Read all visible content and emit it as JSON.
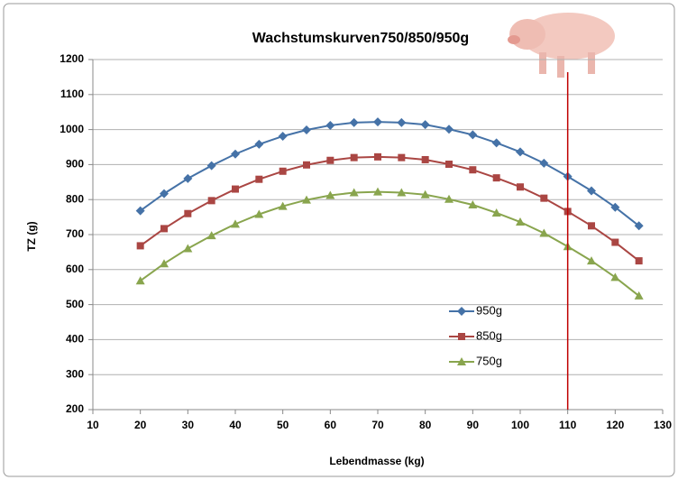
{
  "chart_data": {
    "type": "line",
    "title": "Wachstumskurven750/850/950g",
    "x_label": "Lebendmasse (kg)",
    "y_label": "TZ (g)",
    "x": [
      20,
      25,
      30,
      35,
      40,
      45,
      50,
      55,
      60,
      65,
      70,
      75,
      80,
      85,
      90,
      95,
      100,
      105,
      110,
      115,
      120,
      125
    ],
    "series": [
      {
        "name": "950g",
        "color": "#4572a7",
        "marker": "diamond",
        "values": [
          768,
          817,
          860,
          897,
          930,
          958,
          981,
          999,
          1012,
          1020,
          1022,
          1020,
          1014,
          1001,
          985,
          962,
          936,
          904,
          866,
          825,
          778,
          725
        ]
      },
      {
        "name": "850g",
        "color": "#aa4643",
        "marker": "square",
        "values": [
          668,
          717,
          760,
          797,
          830,
          858,
          881,
          899,
          912,
          920,
          922,
          920,
          914,
          901,
          885,
          862,
          836,
          804,
          766,
          725,
          678,
          625
        ]
      },
      {
        "name": "750g",
        "color": "#89a54e",
        "marker": "triangle",
        "values": [
          568,
          617,
          660,
          697,
          730,
          758,
          781,
          799,
          812,
          820,
          822,
          820,
          814,
          801,
          785,
          762,
          736,
          704,
          666,
          625,
          578,
          525
        ]
      }
    ],
    "xlim": [
      10,
      130
    ],
    "xticks": [
      10,
      20,
      30,
      40,
      50,
      60,
      70,
      80,
      90,
      100,
      110,
      120,
      130
    ],
    "ylim": [
      200,
      1200
    ],
    "yticks": [
      200,
      300,
      400,
      500,
      600,
      700,
      800,
      900,
      1000,
      1100,
      1200
    ],
    "grid": true,
    "legend": "inside",
    "vline": {
      "x": 110,
      "color": "#c00000"
    }
  }
}
